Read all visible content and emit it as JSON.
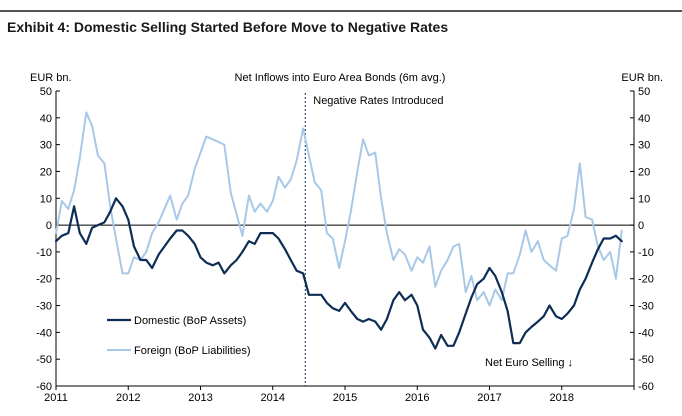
{
  "header": {
    "title": "Exhibit 4: Domestic Selling Started Before Move to Negative Rates"
  },
  "chart_data": {
    "type": "line",
    "title": "Net Inflows into Euro Area Bonds (6m avg.)",
    "ylabel_left": "EUR bn.",
    "ylabel_right": "EUR bn.",
    "ylim": [
      -60,
      50
    ],
    "yticks": [
      50,
      40,
      30,
      20,
      10,
      0,
      -10,
      -20,
      -30,
      -40,
      -50,
      -60
    ],
    "xlim": [
      2011.0,
      2019.0
    ],
    "xticks": [
      "2011",
      "2012",
      "2013",
      "2014",
      "2015",
      "2016",
      "2017",
      "2018"
    ],
    "xtick_values": [
      2011,
      2012,
      2013,
      2014,
      2015,
      2016,
      2017,
      2018
    ],
    "grid": false,
    "legend_position": "lower-left",
    "annotations": {
      "vline": {
        "x": 2014.45,
        "label": "Negative Rates Introduced"
      },
      "note": "Net Euro Selling ↓"
    },
    "series": [
      {
        "name": "Domestic (BoP Assets)",
        "color": "#0d2d54",
        "points": [
          [
            2011.0,
            -6
          ],
          [
            2011.08,
            -4
          ],
          [
            2011.17,
            -3
          ],
          [
            2011.25,
            7
          ],
          [
            2011.33,
            -3
          ],
          [
            2011.42,
            -7
          ],
          [
            2011.5,
            -1
          ],
          [
            2011.58,
            0
          ],
          [
            2011.67,
            1
          ],
          [
            2011.75,
            5
          ],
          [
            2011.83,
            10
          ],
          [
            2011.92,
            7
          ],
          [
            2012.0,
            2
          ],
          [
            2012.08,
            -8
          ],
          [
            2012.17,
            -13
          ],
          [
            2012.25,
            -13
          ],
          [
            2012.33,
            -16
          ],
          [
            2012.42,
            -11
          ],
          [
            2012.5,
            -8
          ],
          [
            2012.58,
            -5
          ],
          [
            2012.67,
            -2
          ],
          [
            2012.75,
            -2
          ],
          [
            2012.83,
            -4
          ],
          [
            2012.92,
            -7
          ],
          [
            2013.0,
            -12
          ],
          [
            2013.08,
            -14
          ],
          [
            2013.17,
            -15
          ],
          [
            2013.25,
            -14
          ],
          [
            2013.33,
            -18
          ],
          [
            2013.42,
            -15
          ],
          [
            2013.5,
            -13
          ],
          [
            2013.58,
            -10
          ],
          [
            2013.67,
            -6
          ],
          [
            2013.75,
            -7
          ],
          [
            2013.83,
            -3
          ],
          [
            2013.92,
            -3
          ],
          [
            2014.0,
            -3
          ],
          [
            2014.08,
            -5
          ],
          [
            2014.17,
            -9
          ],
          [
            2014.25,
            -13
          ],
          [
            2014.33,
            -17
          ],
          [
            2014.42,
            -18
          ],
          [
            2014.5,
            -26
          ],
          [
            2014.58,
            -26
          ],
          [
            2014.67,
            -26
          ],
          [
            2014.75,
            -29
          ],
          [
            2014.83,
            -31
          ],
          [
            2014.92,
            -32
          ],
          [
            2015.0,
            -29
          ],
          [
            2015.08,
            -32
          ],
          [
            2015.17,
            -35
          ],
          [
            2015.25,
            -36
          ],
          [
            2015.33,
            -35
          ],
          [
            2015.42,
            -36
          ],
          [
            2015.5,
            -39
          ],
          [
            2015.58,
            -35
          ],
          [
            2015.67,
            -28
          ],
          [
            2015.75,
            -25
          ],
          [
            2015.83,
            -28
          ],
          [
            2015.92,
            -26
          ],
          [
            2016.0,
            -30
          ],
          [
            2016.08,
            -39
          ],
          [
            2016.17,
            -42
          ],
          [
            2016.25,
            -46
          ],
          [
            2016.33,
            -41
          ],
          [
            2016.42,
            -45
          ],
          [
            2016.5,
            -45
          ],
          [
            2016.58,
            -40
          ],
          [
            2016.67,
            -33
          ],
          [
            2016.75,
            -27
          ],
          [
            2016.83,
            -22
          ],
          [
            2016.92,
            -20
          ],
          [
            2017.0,
            -16
          ],
          [
            2017.08,
            -19
          ],
          [
            2017.17,
            -25
          ],
          [
            2017.25,
            -32
          ],
          [
            2017.33,
            -44
          ],
          [
            2017.42,
            -44
          ],
          [
            2017.5,
            -40
          ],
          [
            2017.58,
            -38
          ],
          [
            2017.67,
            -36
          ],
          [
            2017.75,
            -34
          ],
          [
            2017.83,
            -30
          ],
          [
            2017.92,
            -34
          ],
          [
            2018.0,
            -35
          ],
          [
            2018.08,
            -33
          ],
          [
            2018.17,
            -30
          ],
          [
            2018.25,
            -24
          ],
          [
            2018.33,
            -20
          ],
          [
            2018.42,
            -14
          ],
          [
            2018.5,
            -9
          ],
          [
            2018.58,
            -5
          ],
          [
            2018.67,
            -5
          ],
          [
            2018.75,
            -4
          ],
          [
            2018.83,
            -6
          ]
        ]
      },
      {
        "name": "Foreign (BoP Liabilities)",
        "color": "#a8c8e8",
        "points": [
          [
            2011.0,
            -3
          ],
          [
            2011.08,
            9
          ],
          [
            2011.17,
            6
          ],
          [
            2011.25,
            13
          ],
          [
            2011.33,
            25
          ],
          [
            2011.42,
            42
          ],
          [
            2011.5,
            37
          ],
          [
            2011.58,
            26
          ],
          [
            2011.67,
            23
          ],
          [
            2011.75,
            7
          ],
          [
            2011.83,
            -5
          ],
          [
            2011.92,
            -18
          ],
          [
            2012.0,
            -18
          ],
          [
            2012.08,
            -12
          ],
          [
            2012.17,
            -13
          ],
          [
            2012.25,
            -10
          ],
          [
            2012.33,
            -3
          ],
          [
            2012.42,
            1
          ],
          [
            2012.5,
            6
          ],
          [
            2012.58,
            11
          ],
          [
            2012.67,
            2
          ],
          [
            2012.75,
            8
          ],
          [
            2012.83,
            11
          ],
          [
            2012.92,
            21
          ],
          [
            2013.0,
            27
          ],
          [
            2013.08,
            33
          ],
          [
            2013.17,
            32
          ],
          [
            2013.25,
            31
          ],
          [
            2013.33,
            30
          ],
          [
            2013.42,
            12
          ],
          [
            2013.5,
            4
          ],
          [
            2013.58,
            -4
          ],
          [
            2013.67,
            11
          ],
          [
            2013.75,
            5
          ],
          [
            2013.83,
            8
          ],
          [
            2013.92,
            5
          ],
          [
            2014.0,
            9
          ],
          [
            2014.08,
            18
          ],
          [
            2014.17,
            14
          ],
          [
            2014.25,
            17
          ],
          [
            2014.33,
            24
          ],
          [
            2014.42,
            36
          ],
          [
            2014.5,
            26
          ],
          [
            2014.58,
            16
          ],
          [
            2014.67,
            13
          ],
          [
            2014.75,
            -3
          ],
          [
            2014.83,
            -5
          ],
          [
            2014.92,
            -16
          ],
          [
            2015.0,
            -6
          ],
          [
            2015.08,
            5
          ],
          [
            2015.17,
            20
          ],
          [
            2015.25,
            32
          ],
          [
            2015.33,
            26
          ],
          [
            2015.42,
            27
          ],
          [
            2015.5,
            10
          ],
          [
            2015.58,
            -3
          ],
          [
            2015.67,
            -13
          ],
          [
            2015.75,
            -9
          ],
          [
            2015.83,
            -11
          ],
          [
            2015.92,
            -17
          ],
          [
            2016.0,
            -12
          ],
          [
            2016.08,
            -14
          ],
          [
            2016.17,
            -8
          ],
          [
            2016.25,
            -23
          ],
          [
            2016.33,
            -17
          ],
          [
            2016.42,
            -13
          ],
          [
            2016.5,
            -8
          ],
          [
            2016.58,
            -7
          ],
          [
            2016.67,
            -25
          ],
          [
            2016.75,
            -19
          ],
          [
            2016.83,
            -28
          ],
          [
            2016.92,
            -25
          ],
          [
            2017.0,
            -30
          ],
          [
            2017.08,
            -24
          ],
          [
            2017.17,
            -28
          ],
          [
            2017.25,
            -18
          ],
          [
            2017.33,
            -18
          ],
          [
            2017.42,
            -11
          ],
          [
            2017.5,
            -2
          ],
          [
            2017.58,
            -10
          ],
          [
            2017.67,
            -6
          ],
          [
            2017.75,
            -13
          ],
          [
            2017.83,
            -15
          ],
          [
            2017.92,
            -17
          ],
          [
            2018.0,
            -5
          ],
          [
            2018.08,
            -4
          ],
          [
            2018.17,
            6
          ],
          [
            2018.25,
            23
          ],
          [
            2018.33,
            3
          ],
          [
            2018.42,
            2
          ],
          [
            2018.5,
            -8
          ],
          [
            2018.58,
            -13
          ],
          [
            2018.67,
            -10
          ],
          [
            2018.75,
            -20
          ],
          [
            2018.83,
            -2
          ]
        ]
      }
    ]
  }
}
